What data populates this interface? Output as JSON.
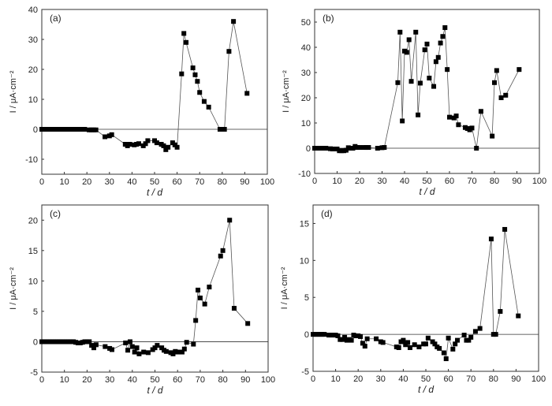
{
  "chart_data": [
    {
      "type": "line",
      "panel_label": "(a)",
      "xlabel": "t / d",
      "ylabel": "I / μA·cm⁻²",
      "xlim": [
        0,
        100
      ],
      "ylim": [
        -15,
        40
      ],
      "xticks": [
        0,
        10,
        20,
        30,
        40,
        50,
        60,
        70,
        80,
        90,
        100
      ],
      "yticks": [
        -10,
        0,
        10,
        20,
        30,
        40
      ],
      "x": [
        0,
        1,
        2,
        3,
        4,
        5,
        6,
        7,
        8,
        9,
        10,
        11,
        12,
        13,
        14,
        15,
        16,
        17,
        18,
        19,
        21,
        22,
        23,
        24,
        28,
        30,
        31,
        37,
        38,
        39,
        41,
        42,
        43,
        45,
        46,
        47,
        50,
        51,
        53,
        54,
        55,
        56,
        58,
        59,
        60,
        62,
        63,
        64,
        67,
        68,
        69,
        70,
        72,
        74,
        79,
        80,
        81,
        83,
        85,
        91
      ],
      "y": [
        0,
        0,
        0,
        0,
        0,
        0,
        0,
        0,
        0,
        0,
        0,
        0,
        0,
        0,
        0,
        0,
        0,
        0,
        0,
        0,
        -0.2,
        -0.2,
        -0.2,
        -0.2,
        -2.5,
        -2.2,
        -1.8,
        -5,
        -5.5,
        -5,
        -5.2,
        -5,
        -4.8,
        -5.5,
        -4.8,
        -3.8,
        -3.8,
        -4.5,
        -5,
        -5.5,
        -6.8,
        -6,
        -4.5,
        -5.2,
        -6,
        18.5,
        32,
        29,
        20.5,
        18.2,
        16,
        12.3,
        9.3,
        7.4,
        0,
        0,
        0,
        26,
        36,
        12
      ]
    },
    {
      "type": "line",
      "panel_label": "(b)",
      "xlabel": "t / d",
      "ylabel": "I / μA·cm⁻²",
      "xlim": [
        0,
        100
      ],
      "ylim": [
        -10,
        55
      ],
      "xticks": [
        0,
        10,
        20,
        30,
        40,
        50,
        60,
        70,
        80,
        90,
        100
      ],
      "yticks": [
        -10,
        0,
        10,
        20,
        30,
        40,
        50
      ],
      "x": [
        0,
        1,
        2,
        3,
        4,
        5,
        7,
        8,
        10,
        11,
        12,
        13,
        14,
        15,
        16,
        17,
        18,
        19,
        20,
        22,
        23,
        24,
        28,
        30,
        31,
        37,
        38,
        39,
        40,
        41,
        42,
        43,
        45,
        46,
        47,
        49,
        50,
        51,
        53,
        54,
        55,
        56,
        57,
        58,
        59,
        60,
        62,
        63,
        64,
        67,
        68,
        69,
        70,
        72,
        74,
        79,
        80,
        81,
        83,
        85,
        91
      ],
      "y": [
        0,
        0,
        0,
        0,
        0,
        0,
        -0.2,
        -0.3,
        -0.3,
        -1,
        -1,
        -1,
        -0.8,
        0.2,
        0,
        0,
        0.7,
        0.3,
        0.3,
        0.3,
        0.3,
        0.3,
        0,
        0.2,
        0.3,
        26,
        46,
        10.8,
        38.5,
        38,
        43,
        26.5,
        46,
        13.2,
        25.8,
        39,
        41.3,
        27.8,
        24.5,
        34.3,
        36,
        41.7,
        44.3,
        47.8,
        31.2,
        12.3,
        12,
        12.8,
        9.3,
        8.2,
        7.8,
        7.3,
        8,
        0,
        14.6,
        4.8,
        26,
        30.8,
        20,
        21,
        31.2
      ]
    },
    {
      "type": "line",
      "panel_label": "(c)",
      "xlabel": "t / d",
      "ylabel": "I / μA·cm⁻²",
      "xlim": [
        0,
        100
      ],
      "ylim": [
        -5,
        22.5
      ],
      "xticks": [
        0,
        10,
        20,
        30,
        40,
        50,
        60,
        70,
        80,
        90,
        100
      ],
      "yticks": [
        -5,
        0,
        5,
        10,
        15,
        20
      ],
      "x": [
        0,
        1,
        2,
        3,
        4,
        5,
        6,
        7,
        8,
        9,
        10,
        11,
        12,
        13,
        14,
        15,
        16,
        17,
        18,
        19,
        20,
        21,
        22,
        23,
        24,
        28,
        30,
        31,
        37,
        38,
        39,
        40,
        41,
        42,
        43,
        45,
        47,
        49,
        50,
        51,
        53,
        54,
        55,
        57,
        58,
        59,
        60,
        62,
        63,
        64,
        67,
        68,
        69,
        70,
        72,
        74,
        79,
        80,
        83,
        85,
        91
      ],
      "y": [
        0,
        0,
        0,
        0,
        0,
        0,
        0,
        0,
        0,
        0,
        0,
        0,
        0,
        0,
        0,
        -0.1,
        -0.2,
        -0.2,
        -0.1,
        0,
        0,
        0,
        -0.6,
        -1,
        -0.5,
        -0.8,
        -1.1,
        -1.3,
        -0.2,
        -1.4,
        0,
        -0.8,
        -1.7,
        -1,
        -2,
        -1.7,
        -1.8,
        -1.3,
        -1,
        -0.6,
        -1,
        -1.4,
        -1.6,
        -1.8,
        -2,
        -1.6,
        -1.7,
        -1.7,
        -1.2,
        -0.1,
        -0.4,
        3.5,
        8.5,
        7.2,
        6.2,
        9,
        14.1,
        15,
        20,
        5.5,
        3
      ]
    },
    {
      "type": "line",
      "panel_label": "(d)",
      "xlabel": "t / d",
      "ylabel": "I / μA·cm⁻²",
      "xlim": [
        0,
        100
      ],
      "ylim": [
        -5,
        17.5
      ],
      "xticks": [
        0,
        10,
        20,
        30,
        40,
        50,
        60,
        70,
        80,
        90,
        100
      ],
      "yticks": [
        -5,
        0,
        5,
        10,
        15
      ],
      "x": [
        0,
        1,
        2,
        3,
        4,
        5,
        7,
        8,
        9,
        10,
        11,
        12,
        13,
        14,
        15,
        16,
        17,
        18,
        19,
        20,
        21,
        22,
        23,
        24,
        28,
        30,
        31,
        37,
        38,
        39,
        40,
        41,
        42,
        43,
        45,
        47,
        49,
        50,
        51,
        53,
        54,
        55,
        56,
        58,
        59,
        60,
        62,
        63,
        64,
        67,
        68,
        69,
        70,
        72,
        74,
        79,
        80,
        81,
        83,
        85,
        91
      ],
      "y": [
        0,
        0,
        0,
        0,
        0,
        0,
        -0.1,
        -0.1,
        -0.1,
        -0.1,
        -0.2,
        -0.7,
        -0.7,
        -0.4,
        -0.8,
        -0.7,
        -0.8,
        -0.1,
        -0.2,
        -0.2,
        -0.3,
        -1.2,
        -1.6,
        -0.6,
        -0.6,
        -1,
        -1.1,
        -1.7,
        -1.8,
        -1,
        -0.8,
        -1.4,
        -1.1,
        -1.8,
        -1.4,
        -1.7,
        -1.3,
        -1.3,
        -0.5,
        -1,
        -1.3,
        -1.7,
        -1.9,
        -2.5,
        -3.3,
        -0.5,
        -2,
        -1.3,
        -0.8,
        -0.1,
        -0.8,
        -0.8,
        -0.4,
        0.4,
        0.8,
        12.9,
        0,
        0,
        3.1,
        14.2,
        2.5
      ]
    }
  ]
}
